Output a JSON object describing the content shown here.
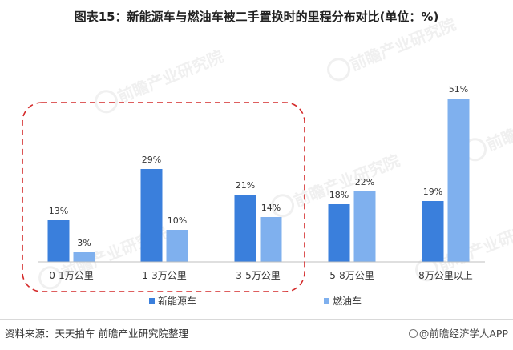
{
  "title": "图表15：新能源车与燃油车被二手置换时的里程分布对比(单位：%)",
  "source": "资料来源：天天拍车 前瞻产业研究院整理",
  "app_watermark": "@前瞻经济学人APP",
  "watermark_brand": "前瞻产业研究院",
  "chart_data": {
    "type": "bar",
    "title": "图表15：新能源车与燃油车被二手置换时的里程分布对比(单位：%)",
    "categories": [
      "0-1万公里",
      "1-3万公里",
      "3-5万公里",
      "5-8万公里",
      "8万公里以上"
    ],
    "series": [
      {
        "name": "新能源车",
        "values": [
          13,
          29,
          21,
          18,
          19
        ],
        "labels": [
          "13%",
          "29%",
          "21%",
          "18%",
          "19%"
        ],
        "color": "#3a7fdc"
      },
      {
        "name": "燃油车",
        "values": [
          3,
          10,
          14,
          22,
          51
        ],
        "labels": [
          "3%",
          "10%",
          "14%",
          "22%",
          "51%"
        ],
        "color": "#7fb0ee"
      }
    ],
    "ylim": [
      0,
      55
    ],
    "grid": false,
    "legend_position": "bottom",
    "highlight": {
      "style": "dashed-red-rounded-box",
      "categories": [
        "0-1万公里",
        "1-3万公里",
        "3-5万公里"
      ]
    }
  }
}
